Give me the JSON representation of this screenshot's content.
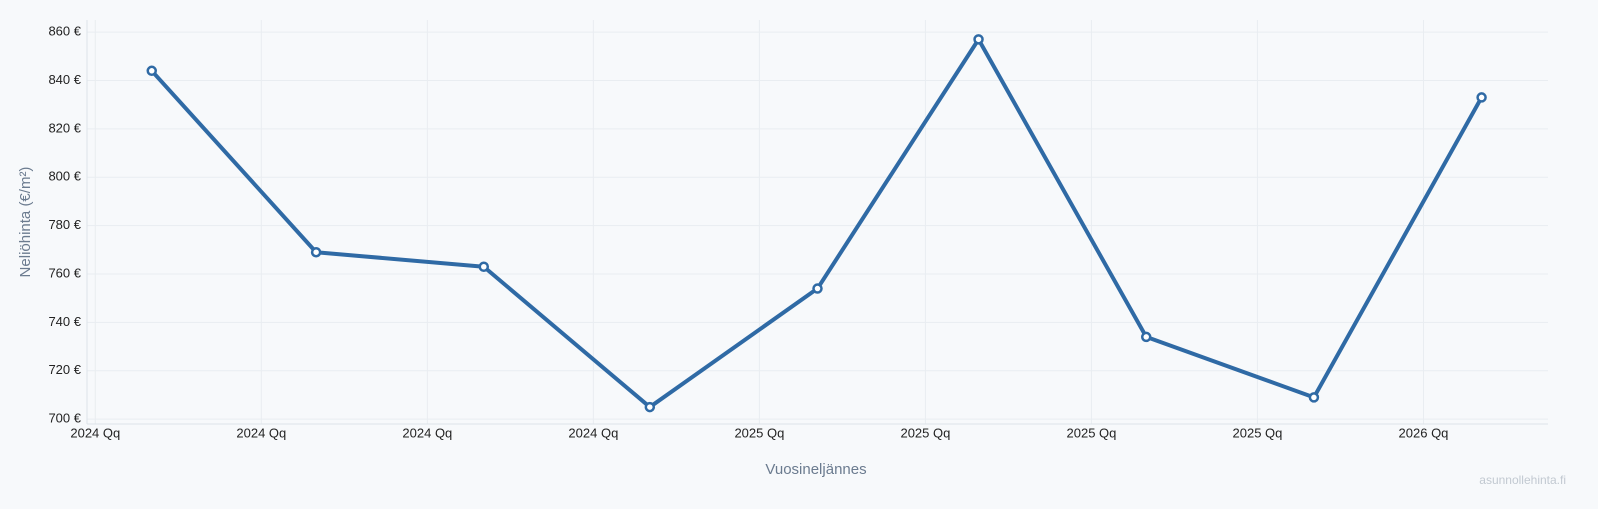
{
  "chart_data": {
    "type": "line",
    "y_label": "Neliöhinta (€/m²)",
    "x_label": "Vuosineljännes",
    "watermark": "asunnollehinta.fi",
    "x": [
      0.34,
      1.33,
      2.34,
      3.34,
      4.35,
      5.32,
      6.33,
      7.34,
      8.35
    ],
    "series": [
      {
        "color": "#2f6aa5",
        "values": [
          844,
          769,
          763,
          705,
          754,
          857,
          734,
          709,
          833
        ]
      }
    ],
    "xlim": [
      -0.05,
      8.75
    ],
    "xticks": [
      {
        "value": 0,
        "label": "2024 Qq"
      },
      {
        "value": 1,
        "label": "2024 Qq"
      },
      {
        "value": 2,
        "label": "2024 Qq"
      },
      {
        "value": 3,
        "label": "2024 Qq"
      },
      {
        "value": 4,
        "label": "2025 Qq"
      },
      {
        "value": 5,
        "label": "2025 Qq"
      },
      {
        "value": 6,
        "label": "2025 Qq"
      },
      {
        "value": 7,
        "label": "2025 Qq"
      },
      {
        "value": 8,
        "label": "2026 Qq"
      }
    ],
    "ylim": [
      698,
      865
    ],
    "yticks": [
      {
        "value": 700,
        "label": "700 €"
      },
      {
        "value": 720,
        "label": "720 €"
      },
      {
        "value": 740,
        "label": "740 €"
      },
      {
        "value": 760,
        "label": "760 €"
      },
      {
        "value": 780,
        "label": "780 €"
      },
      {
        "value": 800,
        "label": "800 €"
      },
      {
        "value": 820,
        "label": "820 €"
      },
      {
        "value": 840,
        "label": "840 €"
      },
      {
        "value": 860,
        "label": "860 €"
      }
    ],
    "grid": true
  }
}
